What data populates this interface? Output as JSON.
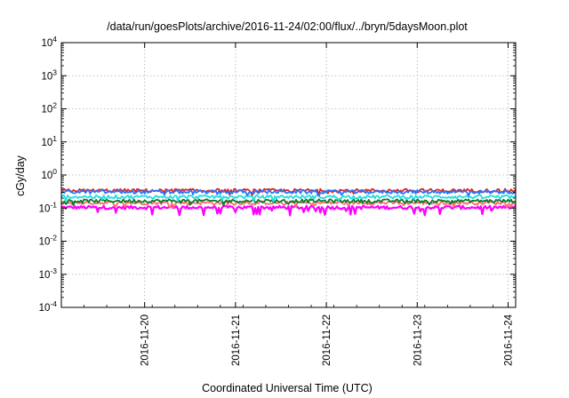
{
  "chart_data": {
    "type": "line",
    "title": "/data/run/goesPlots/archive/2016-11-24/02:00/flux/../bryn/5daysMoon.plot",
    "xlabel": "Coordinated Universal Time (UTC)",
    "ylabel": "cGy/day",
    "y_scale": "log",
    "ylim": [
      0.0001,
      10000
    ],
    "y_ticks": [
      {
        "base": "10",
        "exp": "-4"
      },
      {
        "base": "10",
        "exp": "-3"
      },
      {
        "base": "10",
        "exp": "-2"
      },
      {
        "base": "10",
        "exp": "-1"
      },
      {
        "base": "10",
        "exp": "0"
      },
      {
        "base": "10",
        "exp": "1"
      },
      {
        "base": "10",
        "exp": "2"
      },
      {
        "base": "10",
        "exp": "3"
      },
      {
        "base": "10",
        "exp": "4"
      }
    ],
    "xlim": [
      "2016-11-19T02:00",
      "2016-11-24T02:00"
    ],
    "x_ticks": [
      "2016-11-20",
      "2016-11-21",
      "2016-11-22",
      "2016-11-23",
      "2016-11-24"
    ],
    "grid": true,
    "series": [
      {
        "color": "#ff00ff",
        "level": 0.105,
        "dips": true
      },
      {
        "color": "#ff6b6b",
        "level": 0.145
      },
      {
        "color": "#0a7a2a",
        "level": 0.165
      },
      {
        "color": "#22dddd",
        "level": 0.22
      },
      {
        "color": "#dd2222",
        "level": 0.34
      },
      {
        "color": "#2a72ff",
        "level": 0.31
      }
    ]
  }
}
